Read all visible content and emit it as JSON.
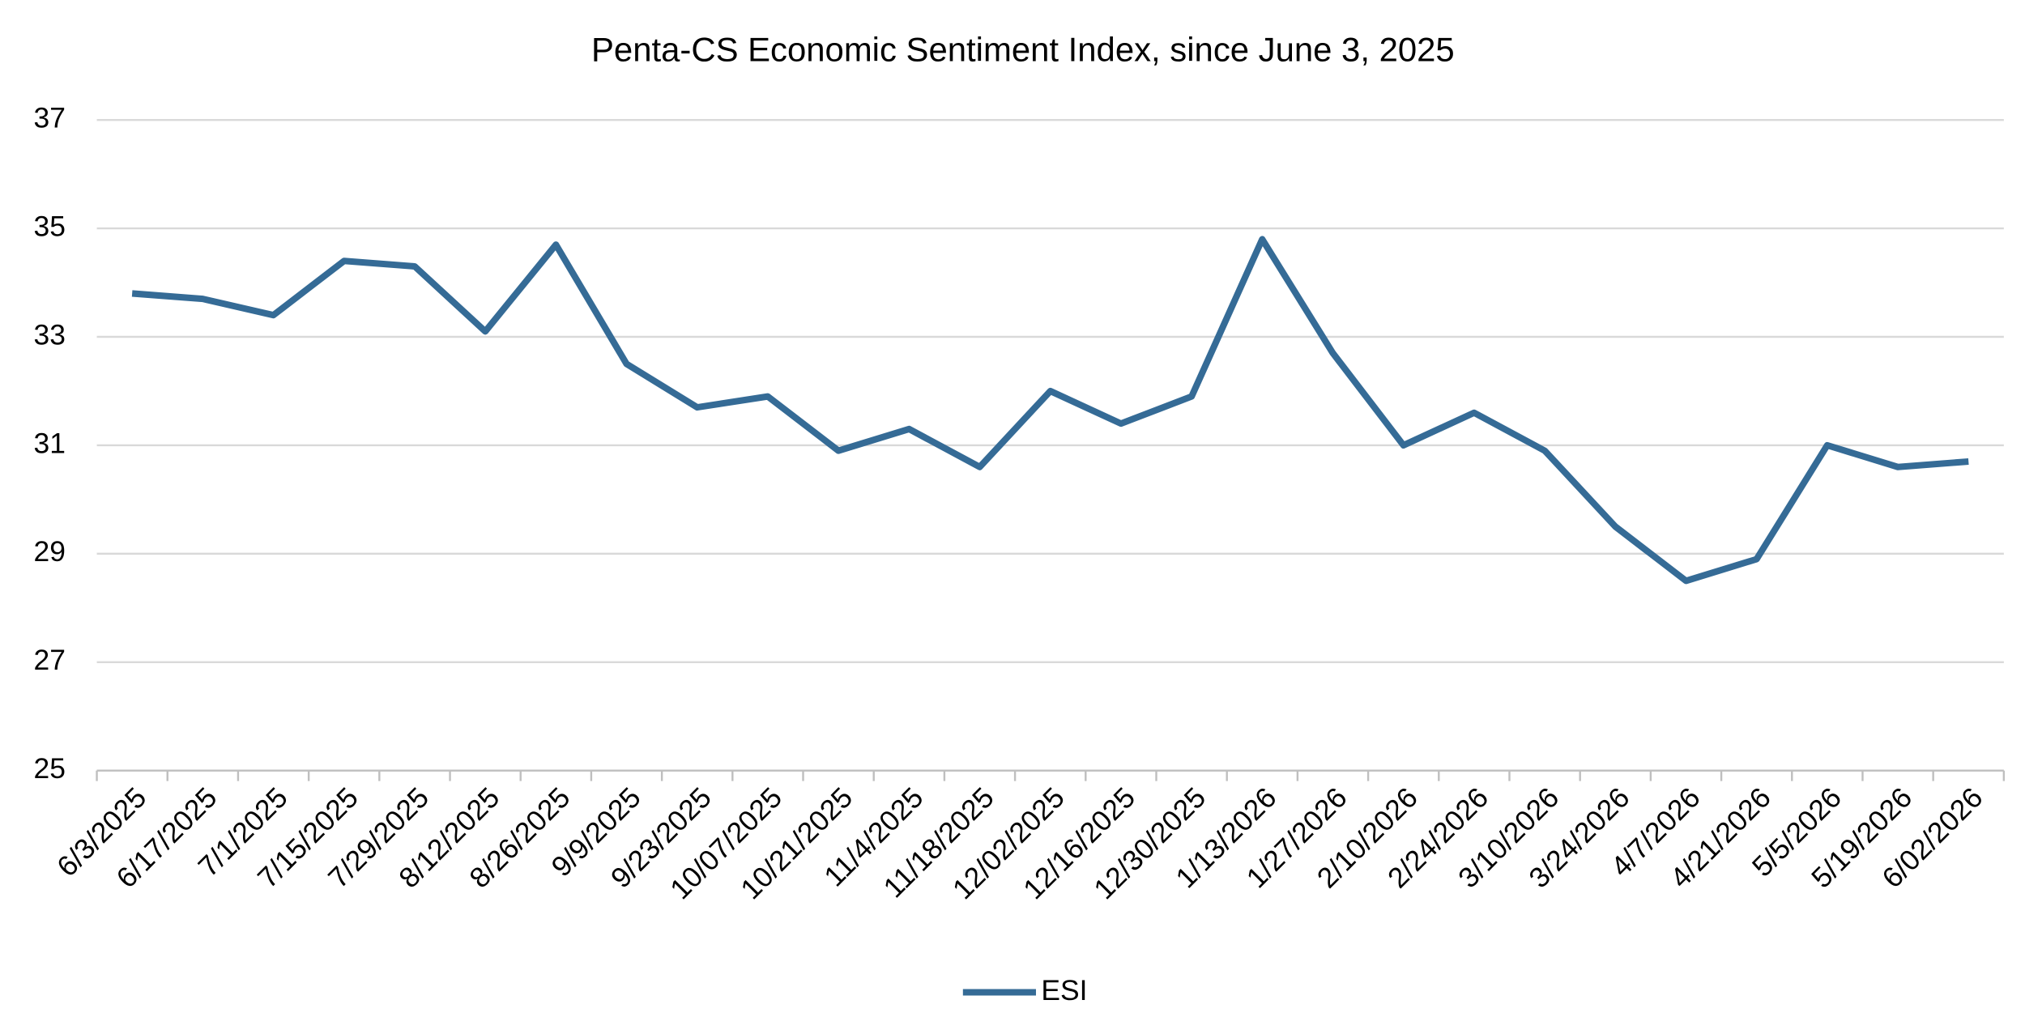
{
  "chart_data": {
    "type": "line",
    "title": "Penta-CS Economic Sentiment Index, since June 3, 2025",
    "categories": [
      "6/3/2025",
      "6/17/2025",
      "7/1/2025",
      "7/15/2025",
      "7/29/2025",
      "8/12/2025",
      "8/26/2025",
      "9/9/2025",
      "9/23/2025",
      "10/07/2025",
      "10/21/2025",
      "11/4/2025",
      "11/18/2025",
      "12/02/2025",
      "12/16/2025",
      "12/30/2025",
      "1/13/2026",
      "1/27/2026",
      "2/10/2026",
      "2/24/2026",
      "3/10/2026",
      "3/24/2026",
      "4/7/2026",
      "4/21/2026",
      "5/5/2026",
      "5/19/2026",
      "6/02/2026"
    ],
    "series": [
      {
        "name": "ESI",
        "color": "#356b96",
        "values": [
          33.8,
          33.7,
          33.4,
          34.4,
          34.3,
          33.1,
          34.7,
          32.5,
          31.7,
          31.9,
          30.9,
          31.3,
          30.6,
          32.0,
          31.4,
          31.9,
          34.8,
          32.7,
          31.0,
          31.6,
          30.9,
          29.5,
          28.5,
          28.9,
          31.0,
          30.6,
          30.7
        ]
      }
    ],
    "ylim": [
      25,
      37
    ],
    "yticks": [
      25,
      27,
      29,
      31,
      33,
      35,
      37
    ],
    "grid": true,
    "legend": "bottom"
  }
}
